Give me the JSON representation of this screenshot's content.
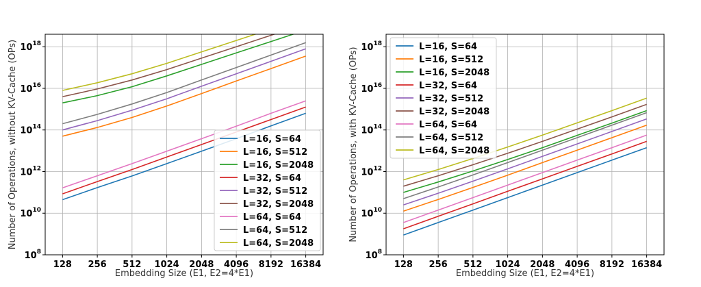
{
  "chart_data": [
    {
      "type": "line",
      "title": "",
      "xlabel": "Embedding Size (E1, E2=4*E1)",
      "ylabel": "Number of Operations, without KV-Cache (OPs)",
      "x": [
        128,
        256,
        512,
        1024,
        2048,
        4096,
        8192,
        16384
      ],
      "xticklabels": [
        "128",
        "256",
        "512",
        "1024",
        "2048",
        "4096",
        "8192",
        "16384"
      ],
      "xscale": "log2",
      "yscale": "log10",
      "ylim_exp": [
        8,
        18.6
      ],
      "yticks": [
        {
          "base": "10",
          "exp": "8"
        },
        {
          "base": "10",
          "exp": "10"
        },
        {
          "base": "10",
          "exp": "12"
        },
        {
          "base": "10",
          "exp": "14"
        },
        {
          "base": "10",
          "exp": "16"
        },
        {
          "base": "10",
          "exp": "18"
        }
      ],
      "grid": true,
      "legend_position": "lower right",
      "series": [
        {
          "name": "L=16, S=64",
          "color": "#1f77b4",
          "log10_values": [
            10.65,
            11.23,
            11.79,
            12.38,
            12.98,
            13.58,
            14.2,
            14.8
          ]
        },
        {
          "name": "L=16, S=512",
          "color": "#ff7f0e",
          "log10_values": [
            13.7,
            14.12,
            14.6,
            15.15,
            15.75,
            16.35,
            16.95,
            17.55
          ]
        },
        {
          "name": "L=16, S=2048",
          "color": "#2ca02c",
          "log10_values": [
            15.3,
            15.65,
            16.08,
            16.6,
            17.15,
            17.7,
            18.25,
            18.8
          ]
        },
        {
          "name": "L=32, S=64",
          "color": "#d62728",
          "log10_values": [
            10.93,
            11.52,
            12.1,
            12.7,
            13.3,
            13.9,
            14.5,
            15.1
          ]
        },
        {
          "name": "L=32, S=512",
          "color": "#9467bd",
          "log10_values": [
            14.0,
            14.45,
            14.95,
            15.5,
            16.1,
            16.7,
            17.3,
            17.9
          ]
        },
        {
          "name": "L=32, S=2048",
          "color": "#8c564b",
          "log10_values": [
            15.6,
            15.97,
            16.4,
            16.9,
            17.45,
            18.0,
            18.55,
            19.1
          ]
        },
        {
          "name": "L=64, S=64",
          "color": "#e377c2",
          "log10_values": [
            11.22,
            11.8,
            12.38,
            12.98,
            13.58,
            14.18,
            14.8,
            15.4
          ]
        },
        {
          "name": "L=64, S=512",
          "color": "#7f7f7f",
          "log10_values": [
            14.3,
            14.75,
            15.25,
            15.8,
            16.4,
            17.0,
            17.6,
            18.2
          ]
        },
        {
          "name": "L=64, S=2048",
          "color": "#bcbd22",
          "log10_values": [
            15.9,
            16.27,
            16.7,
            17.2,
            17.75,
            18.3,
            18.85,
            19.4
          ]
        }
      ]
    },
    {
      "type": "line",
      "title": "",
      "xlabel": "Embedding Size (E1, E2=4*E1)",
      "ylabel": "Number of Operations, with KV-Cache (OPs)",
      "x": [
        128,
        256,
        512,
        1024,
        2048,
        4096,
        8192,
        16384
      ],
      "xticklabels": [
        "128",
        "256",
        "512",
        "1024",
        "2048",
        "4096",
        "8192",
        "16384"
      ],
      "xscale": "log2",
      "yscale": "log10",
      "ylim_exp": [
        8,
        18.6
      ],
      "yticks": [
        {
          "base": "10",
          "exp": "8"
        },
        {
          "base": "10",
          "exp": "10"
        },
        {
          "base": "10",
          "exp": "12"
        },
        {
          "base": "10",
          "exp": "14"
        },
        {
          "base": "10",
          "exp": "16"
        },
        {
          "base": "10",
          "exp": "18"
        }
      ],
      "grid": true,
      "legend_position": "upper left",
      "series": [
        {
          "name": "L=16, S=64",
          "color": "#1f77b4",
          "log10_values": [
            8.95,
            9.55,
            10.15,
            10.75,
            11.35,
            11.95,
            12.55,
            13.15
          ]
        },
        {
          "name": "L=16, S=512",
          "color": "#ff7f0e",
          "log10_values": [
            10.1,
            10.66,
            11.24,
            11.83,
            12.43,
            13.03,
            13.63,
            14.23
          ]
        },
        {
          "name": "L=16, S=2048",
          "color": "#2ca02c",
          "log10_values": [
            11.0,
            11.5,
            12.03,
            12.58,
            13.15,
            13.74,
            14.33,
            14.93
          ]
        },
        {
          "name": "L=32, S=64",
          "color": "#d62728",
          "log10_values": [
            9.25,
            9.85,
            10.45,
            11.05,
            11.65,
            12.25,
            12.85,
            13.45
          ]
        },
        {
          "name": "L=32, S=512",
          "color": "#9467bd",
          "log10_values": [
            10.4,
            10.96,
            11.54,
            12.13,
            12.73,
            13.33,
            13.93,
            14.53
          ]
        },
        {
          "name": "L=32, S=2048",
          "color": "#8c564b",
          "log10_values": [
            11.3,
            11.8,
            12.33,
            12.88,
            13.45,
            14.04,
            14.63,
            15.23
          ]
        },
        {
          "name": "L=64, S=64",
          "color": "#e377c2",
          "log10_values": [
            9.55,
            10.15,
            10.75,
            11.35,
            11.95,
            12.55,
            13.15,
            13.75
          ]
        },
        {
          "name": "L=64, S=512",
          "color": "#7f7f7f",
          "log10_values": [
            10.7,
            11.26,
            11.84,
            12.43,
            13.03,
            13.63,
            14.23,
            14.83
          ]
        },
        {
          "name": "L=64, S=2048",
          "color": "#bcbd22",
          "log10_values": [
            11.6,
            12.1,
            12.63,
            13.18,
            13.75,
            14.34,
            14.93,
            15.53
          ]
        }
      ]
    }
  ]
}
